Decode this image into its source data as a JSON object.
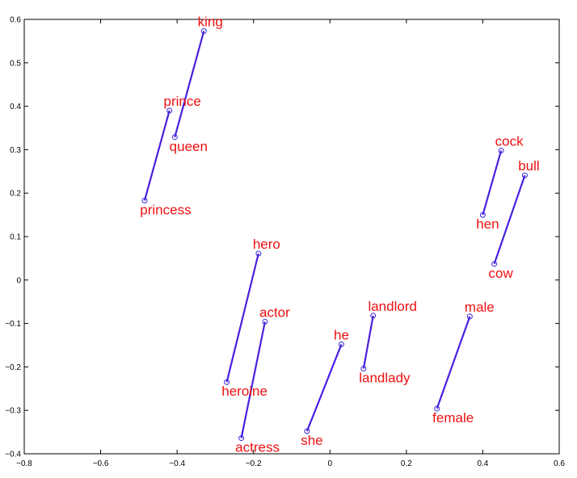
{
  "chart_data": {
    "type": "scatter",
    "title": "",
    "xlabel": "",
    "ylabel": "",
    "xlim": [
      -0.8,
      0.6
    ],
    "ylim": [
      -0.4,
      0.6
    ],
    "xticks": [
      -0.8,
      -0.6,
      -0.4,
      -0.2,
      0,
      0.2,
      0.4,
      0.6
    ],
    "yticks": [
      -0.4,
      -0.3,
      -0.2,
      -0.1,
      0,
      0.1,
      0.2,
      0.3,
      0.4,
      0.5,
      0.6
    ],
    "xtick_labels": [
      "−0.8",
      "−0.6",
      "−0.4",
      "−0.2",
      "0",
      "0.2",
      "0.4",
      "0.6"
    ],
    "ytick_labels": [
      "−0.4",
      "−0.3",
      "−0.2",
      "−0.1",
      "0",
      "0.1",
      "0.2",
      "0.3",
      "0.4",
      "0.5",
      "0.6"
    ],
    "grid": false,
    "colors": {
      "line": "#4b1fe0",
      "marker": "#3a2ad8",
      "label": "#ee1111",
      "axis": "#000000"
    },
    "points": [
      {
        "label": "king",
        "x": -0.33,
        "y": 0.573
      },
      {
        "label": "queen",
        "x": -0.406,
        "y": 0.329
      },
      {
        "label": "prince",
        "x": -0.42,
        "y": 0.39
      },
      {
        "label": "princess",
        "x": -0.485,
        "y": 0.183
      },
      {
        "label": "cock",
        "x": 0.448,
        "y": 0.298
      },
      {
        "label": "hen",
        "x": 0.4,
        "y": 0.15
      },
      {
        "label": "bull",
        "x": 0.51,
        "y": 0.241
      },
      {
        "label": "cow",
        "x": 0.43,
        "y": 0.037
      },
      {
        "label": "hero",
        "x": -0.187,
        "y": 0.061
      },
      {
        "label": "heroine",
        "x": -0.27,
        "y": -0.235
      },
      {
        "label": "actor",
        "x": -0.17,
        "y": -0.096
      },
      {
        "label": "actress",
        "x": -0.232,
        "y": -0.364
      },
      {
        "label": "he",
        "x": 0.03,
        "y": -0.148
      },
      {
        "label": "she",
        "x": -0.06,
        "y": -0.348
      },
      {
        "label": "landlord",
        "x": 0.113,
        "y": -0.082
      },
      {
        "label": "landlady",
        "x": 0.088,
        "y": -0.204
      },
      {
        "label": "male",
        "x": 0.366,
        "y": -0.084
      },
      {
        "label": "female",
        "x": 0.28,
        "y": -0.296
      }
    ],
    "pairs": [
      [
        "king",
        "queen"
      ],
      [
        "prince",
        "princess"
      ],
      [
        "cock",
        "hen"
      ],
      [
        "bull",
        "cow"
      ],
      [
        "hero",
        "heroine"
      ],
      [
        "actor",
        "actress"
      ],
      [
        "he",
        "she"
      ],
      [
        "landlord",
        "landlady"
      ],
      [
        "male",
        "female"
      ]
    ]
  }
}
